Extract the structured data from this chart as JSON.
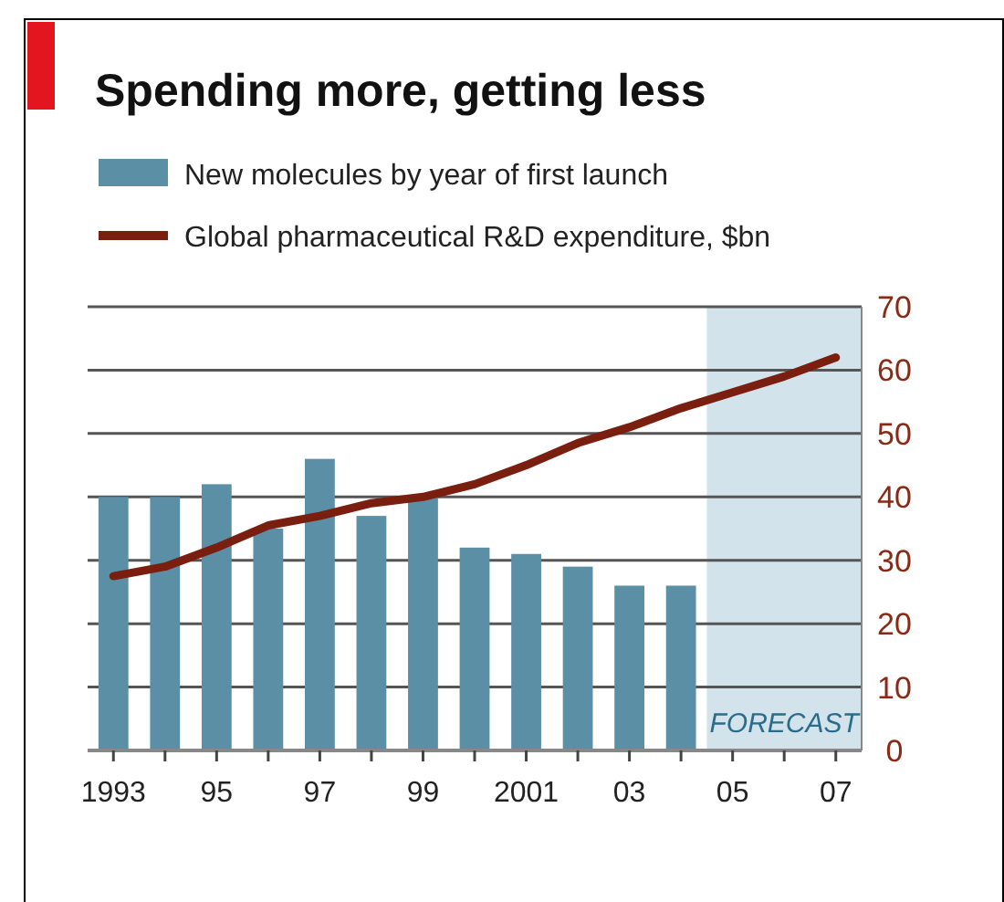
{
  "chart_data": {
    "type": "bar",
    "title": "Spending more, getting less",
    "x": [
      1993,
      1994,
      1995,
      1996,
      1997,
      1998,
      1999,
      2000,
      2001,
      2002,
      2003,
      2004,
      2005,
      2006,
      2007
    ],
    "xlim": [
      1992.5,
      2007.5
    ],
    "xticks": [
      {
        "value": 1993,
        "label": "1993"
      },
      {
        "value": 1994,
        "label": null
      },
      {
        "value": 1995,
        "label": "95"
      },
      {
        "value": 1996,
        "label": null
      },
      {
        "value": 1997,
        "label": "97"
      },
      {
        "value": 1998,
        "label": null
      },
      {
        "value": 1999,
        "label": "99"
      },
      {
        "value": 2000,
        "label": null
      },
      {
        "value": 2001,
        "label": "2001"
      },
      {
        "value": 2002,
        "label": null
      },
      {
        "value": 2003,
        "label": "03"
      },
      {
        "value": 2004,
        "label": null
      },
      {
        "value": 2005,
        "label": "05"
      },
      {
        "value": 2006,
        "label": null
      },
      {
        "value": 2007,
        "label": "07"
      }
    ],
    "ylim": [
      0,
      70
    ],
    "yticks": [
      0,
      10,
      20,
      30,
      40,
      50,
      60,
      70
    ],
    "grid": "y",
    "legend": "top",
    "series": [
      {
        "name": "New molecules by year of first launch",
        "color": "#5b8fa6",
        "values": [
          40,
          40,
          42,
          35,
          46,
          37,
          40,
          32,
          31,
          29,
          26,
          26,
          null,
          null,
          null
        ]
      },
      {
        "name": "Global pharmaceutical R&D expenditure, $bn",
        "type": "line",
        "color": "#7a1f0f",
        "values": [
          27.5,
          29,
          32,
          35.5,
          37,
          39,
          40,
          42,
          45,
          48.5,
          51,
          54,
          56.5,
          59,
          62
        ]
      }
    ],
    "bands": [
      {
        "axis": "x",
        "from": 2004.5,
        "to": 2007.5,
        "label": "FORECAST",
        "color": "#d3e3ec"
      }
    ]
  }
}
